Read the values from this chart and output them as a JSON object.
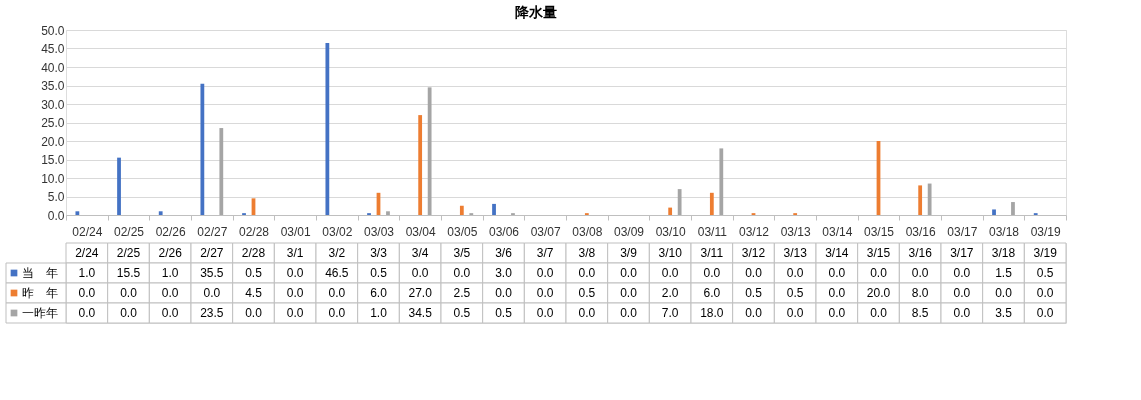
{
  "chart_data": {
    "type": "bar",
    "title": "降水量",
    "categories": [
      "02/24",
      "02/25",
      "02/26",
      "02/27",
      "02/28",
      "03/01",
      "03/02",
      "03/03",
      "03/04",
      "03/05",
      "03/06",
      "03/07",
      "03/08",
      "03/09",
      "03/10",
      "03/11",
      "03/12",
      "03/13",
      "03/14",
      "03/15",
      "03/16",
      "03/17",
      "03/18",
      "03/19"
    ],
    "series": [
      {
        "name": "当　年",
        "color": "#4472c4",
        "values": [
          1.0,
          15.5,
          1.0,
          35.5,
          0.5,
          0.0,
          46.5,
          0.5,
          0.0,
          0.0,
          3.0,
          0.0,
          0.0,
          0.0,
          0.0,
          0.0,
          0.0,
          0.0,
          0.0,
          0.0,
          0.0,
          0.0,
          1.5,
          0.5
        ],
        "value_labels": [
          "1.0",
          "15.5",
          "1.0",
          "35.5",
          "0.5",
          "0.0",
          "46.5",
          "0.5",
          "0.0",
          "0.0",
          "3.0",
          "0.0",
          "0.0",
          "0.0",
          "0.0",
          "0.0",
          "0.0",
          "0.0",
          "0.0",
          "0.0",
          "0.0",
          "0.0",
          "1.5",
          "0.5"
        ]
      },
      {
        "name": "昨　年",
        "color": "#ed7d31",
        "values": [
          0.0,
          0.0,
          0.0,
          0.0,
          4.5,
          0.0,
          0.0,
          6.0,
          27.0,
          2.5,
          0.0,
          0.0,
          0.5,
          0.0,
          2.0,
          6.0,
          0.5,
          0.5,
          0.0,
          20.0,
          8.0,
          0.0,
          0.0,
          0.0
        ],
        "value_labels": [
          "0.0",
          "0.0",
          "0.0",
          "0.0",
          "4.5",
          "0.0",
          "0.0",
          "6.0",
          "27.0",
          "2.5",
          "0.0",
          "0.0",
          "0.5",
          "0.0",
          "2.0",
          "6.0",
          "0.5",
          "0.5",
          "0.0",
          "20.0",
          "8.0",
          "0.0",
          "0.0",
          "0.0"
        ]
      },
      {
        "name": "一昨年",
        "color": "#a5a5a5",
        "values": [
          0.0,
          0.0,
          0.0,
          23.5,
          0.0,
          0.0,
          0.0,
          1.0,
          34.5,
          0.5,
          0.5,
          0.0,
          0.0,
          0.0,
          7.0,
          18.0,
          0.0,
          0.0,
          0.0,
          0.0,
          8.5,
          0.0,
          3.5,
          0.0
        ],
        "value_labels": [
          "0.0",
          "0.0",
          "0.0",
          "23.5",
          "0.0",
          "0.0",
          "0.0",
          "1.0",
          "34.5",
          "0.5",
          "0.5",
          "0.0",
          "0.0",
          "0.0",
          "7.0",
          "18.0",
          "0.0",
          "0.0",
          "0.0",
          "0.0",
          "8.5",
          "0.0",
          "3.5",
          "0.0"
        ]
      }
    ],
    "ylim": [
      0,
      50
    ],
    "yticks": [
      {
        "value": 0,
        "label": "0.0"
      },
      {
        "value": 5,
        "label": "5.0"
      },
      {
        "value": 10,
        "label": "10.0"
      },
      {
        "value": 15,
        "label": "15.0"
      },
      {
        "value": 20,
        "label": "20.0"
      },
      {
        "value": 25,
        "label": "25.0"
      },
      {
        "value": 30,
        "label": "30.0"
      },
      {
        "value": 35,
        "label": "35.0"
      },
      {
        "value": 40,
        "label": "40.0"
      },
      {
        "value": 45,
        "label": "45.0"
      },
      {
        "value": 50,
        "label": "50.0"
      }
    ],
    "grid": "y",
    "legend": "bottom",
    "annotations": [
      "2/24",
      "2/25",
      "2/26",
      "2/27",
      "2/28",
      "3/1",
      "3/2",
      "3/3",
      "3/4",
      "3/5",
      "3/6",
      "3/7",
      "3/8",
      "3/9",
      "3/10",
      "3/11",
      "3/12",
      "3/13",
      "3/14",
      "3/15",
      "3/16",
      "3/17",
      "3/18",
      "3/19"
    ]
  }
}
